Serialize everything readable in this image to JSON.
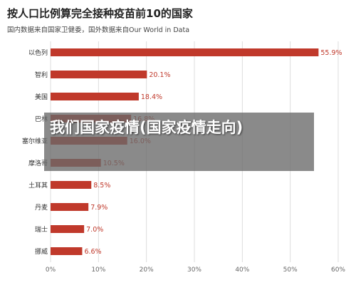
{
  "header": {
    "title": "按人口比例算完全接种疫苗前10的国家",
    "subtitle": "国内数据来自国家卫健委，国外数据来自Our World in Data"
  },
  "overlay": {
    "text": "我们国家疫情(国家疫情走向)"
  },
  "colors": {
    "bar": "#c0392b",
    "label": "#c0392b",
    "grid": "#dddddd",
    "axis": "#666666"
  },
  "chart_data": {
    "type": "bar",
    "orientation": "horizontal",
    "categories": [
      "以色列",
      "智利",
      "美国",
      "巴林",
      "塞尔维亚",
      "摩洛哥",
      "土耳其",
      "丹麦",
      "瑞士",
      "挪威"
    ],
    "values": [
      55.9,
      20.1,
      18.4,
      16.8,
      16.0,
      10.5,
      8.5,
      7.9,
      7.0,
      6.6
    ],
    "value_labels": [
      "55.9%",
      "20.1%",
      "18.4%",
      "16.8%",
      "16.0%",
      "10.5%",
      "8.5%",
      "7.9%",
      "7.0%",
      "6.6%"
    ],
    "xlim": [
      0,
      60
    ],
    "xticks": [
      0,
      10,
      20,
      30,
      40,
      50,
      60
    ],
    "xtick_labels": [
      "0%",
      "10%",
      "20%",
      "30%",
      "40%",
      "50%",
      "60%"
    ],
    "grid": true
  }
}
